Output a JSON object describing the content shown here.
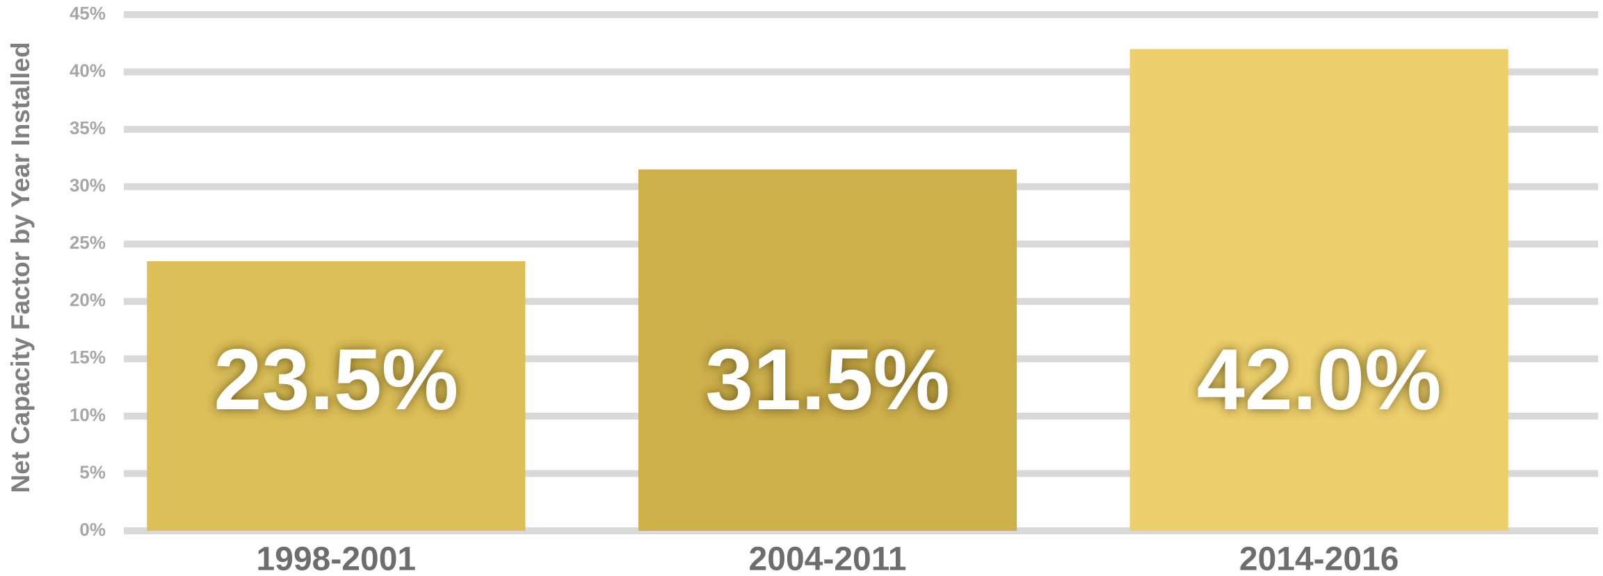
{
  "chart_data": {
    "type": "bar",
    "y_label": "Net Capacity Factor by Year Installed",
    "categories": [
      "1998-2001",
      "2004-2011",
      "2014-2016"
    ],
    "values": [
      23.5,
      31.5,
      42.0
    ],
    "value_labels": [
      "23.5%",
      "31.5%",
      "42.0%"
    ],
    "colors": [
      "#dcbf58",
      "#ceb04b",
      "#edd06c"
    ],
    "ylim": [
      0,
      45
    ],
    "yticks": [
      {
        "value": 0,
        "label": "0%"
      },
      {
        "value": 5,
        "label": "5%"
      },
      {
        "value": 10,
        "label": "10%"
      },
      {
        "value": 15,
        "label": "15%"
      },
      {
        "value": 20,
        "label": "20%"
      },
      {
        "value": 25,
        "label": "25%"
      },
      {
        "value": 30,
        "label": "30%"
      },
      {
        "value": 35,
        "label": "35%"
      },
      {
        "value": 40,
        "label": "40%"
      },
      {
        "value": 45,
        "label": "45%"
      }
    ],
    "grid": true
  }
}
